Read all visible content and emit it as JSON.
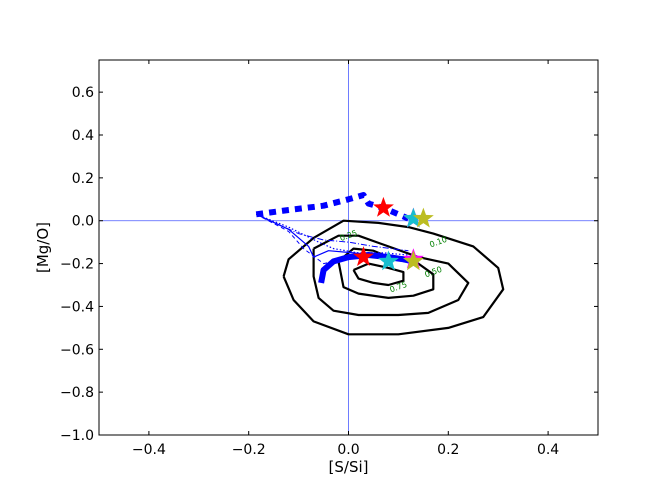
{
  "chart_data": {
    "type": "scatter",
    "xlabel": "[S/Si]",
    "ylabel": "[Mg/O]",
    "xlim": [
      -0.5,
      0.5
    ],
    "ylim": [
      -1.0,
      0.75
    ],
    "xticks": [
      -0.4,
      -0.2,
      0.0,
      0.2,
      0.4
    ],
    "yticks": [
      -1.0,
      -0.8,
      -0.6,
      -0.4,
      -0.2,
      0.0,
      0.2,
      0.4,
      0.6
    ],
    "xtick_labels": [
      "−0.4",
      "−0.2",
      "0.0",
      "0.2",
      "0.4"
    ],
    "ytick_labels": [
      "−1.0",
      "−0.8",
      "−0.6",
      "−0.4",
      "−0.2",
      "0.0",
      "0.2",
      "0.4",
      "0.6"
    ],
    "reference_lines": {
      "x": 0.0,
      "y": 0.0,
      "color": "#4a5bff"
    },
    "contours": [
      {
        "level": "0.10",
        "points": [
          [
            -0.13,
            -0.26
          ],
          [
            -0.12,
            -0.18
          ],
          [
            -0.07,
            -0.08
          ],
          [
            -0.01,
            0.0
          ],
          [
            0.06,
            -0.01
          ],
          [
            0.12,
            -0.03
          ],
          [
            0.17,
            -0.06
          ],
          [
            0.25,
            -0.12
          ],
          [
            0.3,
            -0.22
          ],
          [
            0.31,
            -0.32
          ],
          [
            0.27,
            -0.45
          ],
          [
            0.2,
            -0.5
          ],
          [
            0.1,
            -0.53
          ],
          [
            0.0,
            -0.53
          ],
          [
            -0.07,
            -0.47
          ],
          [
            -0.11,
            -0.37
          ],
          [
            -0.13,
            -0.26
          ]
        ]
      },
      {
        "level": "0.25",
        "points": [
          [
            -0.07,
            -0.13
          ],
          [
            -0.02,
            -0.07
          ],
          [
            0.02,
            -0.07
          ],
          [
            0.08,
            -0.12
          ],
          [
            0.14,
            -0.17
          ],
          [
            0.2,
            -0.2
          ],
          [
            0.24,
            -0.29
          ],
          [
            0.22,
            -0.37
          ],
          [
            0.16,
            -0.43
          ],
          [
            0.1,
            -0.44
          ],
          [
            0.02,
            -0.44
          ],
          [
            -0.03,
            -0.42
          ],
          [
            -0.06,
            -0.36
          ],
          [
            -0.07,
            -0.26
          ],
          [
            -0.07,
            -0.13
          ]
        ]
      },
      {
        "level": "0.50",
        "points": [
          [
            -0.02,
            -0.19
          ],
          [
            0.01,
            -0.13
          ],
          [
            0.05,
            -0.14
          ],
          [
            0.09,
            -0.18
          ],
          [
            0.14,
            -0.2
          ],
          [
            0.17,
            -0.25
          ],
          [
            0.17,
            -0.32
          ],
          [
            0.13,
            -0.35
          ],
          [
            0.08,
            -0.36
          ],
          [
            0.02,
            -0.34
          ],
          [
            -0.01,
            -0.31
          ],
          [
            -0.02,
            -0.19
          ]
        ]
      },
      {
        "level": "0.75",
        "points": [
          [
            0.01,
            -0.23
          ],
          [
            0.04,
            -0.2
          ],
          [
            0.08,
            -0.22
          ],
          [
            0.11,
            -0.24
          ],
          [
            0.11,
            -0.28
          ],
          [
            0.08,
            -0.3
          ],
          [
            0.05,
            -0.29
          ],
          [
            0.02,
            -0.27
          ],
          [
            0.01,
            -0.23
          ]
        ]
      }
    ],
    "contour_labels": [
      {
        "text": "0.25",
        "x": 0.0,
        "y": -0.07
      },
      {
        "text": "0.10",
        "x": 0.18,
        "y": -0.1
      },
      {
        "text": "0.50",
        "x": 0.17,
        "y": -0.24
      },
      {
        "text": "0.75",
        "x": 0.1,
        "y": -0.31
      }
    ],
    "tracks": [
      {
        "style": "dashed-thick",
        "color": "#0000ff",
        "points": [
          [
            -0.185,
            0.03
          ],
          [
            -0.12,
            0.05
          ],
          [
            -0.05,
            0.07
          ],
          [
            0.0,
            0.1
          ],
          [
            0.03,
            0.12
          ],
          [
            0.04,
            0.08
          ],
          [
            0.07,
            0.06
          ],
          [
            0.1,
            0.03
          ],
          [
            0.12,
            0.01
          ]
        ]
      },
      {
        "style": "solid-thick",
        "color": "#0000ff",
        "points": [
          [
            -0.055,
            -0.29
          ],
          [
            -0.05,
            -0.23
          ],
          [
            -0.03,
            -0.19
          ],
          [
            0.0,
            -0.17
          ],
          [
            0.04,
            -0.16
          ],
          [
            0.08,
            -0.17
          ],
          [
            0.11,
            -0.18
          ],
          [
            0.13,
            -0.19
          ]
        ]
      },
      {
        "style": "dashdot-thin",
        "color": "#0000ff",
        "points": [
          [
            -0.185,
            0.03
          ],
          [
            -0.1,
            -0.06
          ],
          [
            -0.05,
            -0.09
          ],
          [
            0.0,
            -0.1
          ],
          [
            0.05,
            -0.12
          ],
          [
            0.12,
            -0.14
          ]
        ]
      },
      {
        "style": "dotted-thin",
        "color": "#0000ff",
        "points": [
          [
            -0.185,
            0.03
          ],
          [
            -0.12,
            -0.03
          ],
          [
            -0.06,
            -0.1
          ],
          [
            -0.03,
            -0.13
          ],
          [
            0.02,
            -0.15
          ],
          [
            0.07,
            -0.15
          ],
          [
            0.12,
            -0.16
          ]
        ]
      },
      {
        "style": "solid-thin",
        "color": "#0000ff",
        "points": [
          [
            -0.185,
            0.03
          ],
          [
            -0.12,
            -0.04
          ],
          [
            -0.08,
            -0.12
          ],
          [
            -0.07,
            -0.17
          ],
          [
            -0.04,
            -0.14
          ],
          [
            0.01,
            -0.15
          ],
          [
            0.05,
            -0.16
          ],
          [
            0.11,
            -0.18
          ]
        ]
      },
      {
        "style": "dashed-thin",
        "color": "#0000ff",
        "points": [
          [
            -0.185,
            0.03
          ],
          [
            -0.12,
            -0.05
          ],
          [
            -0.09,
            -0.13
          ],
          [
            -0.05,
            -0.2
          ],
          [
            -0.03,
            -0.19
          ],
          [
            0.01,
            -0.17
          ],
          [
            0.06,
            -0.16
          ],
          [
            0.12,
            -0.17
          ]
        ]
      }
    ],
    "markers": [
      {
        "x": 0.07,
        "y": 0.06,
        "color": "#ff0000"
      },
      {
        "x": 0.13,
        "y": 0.01,
        "color": "#ff00ff"
      },
      {
        "x": 0.13,
        "y": 0.01,
        "color": "#17becf"
      },
      {
        "x": 0.15,
        "y": 0.01,
        "color": "#bcbd22"
      },
      {
        "x": 0.03,
        "y": -0.17,
        "color": "#ff0000"
      },
      {
        "x": 0.08,
        "y": -0.19,
        "color": "#17becf"
      },
      {
        "x": 0.13,
        "y": -0.18,
        "color": "#ff00ff"
      },
      {
        "x": 0.13,
        "y": -0.19,
        "color": "#bcbd22"
      }
    ]
  }
}
